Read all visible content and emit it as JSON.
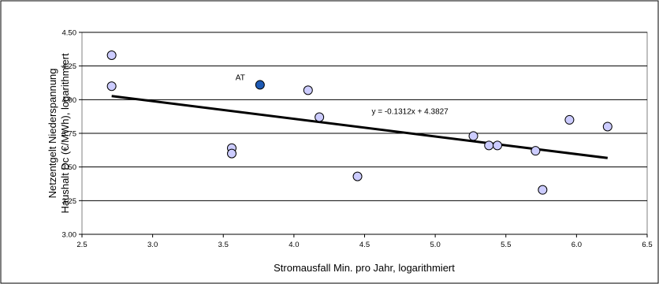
{
  "chart_data": {
    "type": "scatter",
    "title": "",
    "xlabel": "Stromausfall Min. pro Jahr, logarithmiert",
    "ylabel_line1": "Netzentgelt Niederspannung",
    "ylabel_line2": "Haushalt Dc (€/MWh), logarithmiert",
    "xlim": [
      2.5,
      6.5
    ],
    "ylim": [
      3.0,
      4.5
    ],
    "x_ticks": [
      "2.5",
      "3.0",
      "3.5",
      "4.0",
      "4.5",
      "5.0",
      "5.5",
      "6.0",
      "6.5"
    ],
    "y_ticks": [
      "3.00",
      "3.25",
      "3.50",
      "3.75",
      "4.00",
      "4.25",
      "4.50"
    ],
    "grid": {
      "horizontal": true,
      "vertical": false
    },
    "points": [
      {
        "x": 2.71,
        "y": 4.33
      },
      {
        "x": 2.71,
        "y": 4.1
      },
      {
        "x": 3.56,
        "y": 3.64
      },
      {
        "x": 3.56,
        "y": 3.6
      },
      {
        "x": 4.1,
        "y": 4.07
      },
      {
        "x": 4.18,
        "y": 3.87
      },
      {
        "x": 4.45,
        "y": 3.43
      },
      {
        "x": 5.27,
        "y": 3.73
      },
      {
        "x": 5.38,
        "y": 3.66
      },
      {
        "x": 5.44,
        "y": 3.66
      },
      {
        "x": 5.71,
        "y": 3.62
      },
      {
        "x": 5.76,
        "y": 3.33
      },
      {
        "x": 5.95,
        "y": 3.85
      },
      {
        "x": 6.22,
        "y": 3.8
      }
    ],
    "highlight": {
      "label": "AT",
      "x": 3.76,
      "y": 4.11
    },
    "trendline": {
      "equation": "y = -0.1312x + 4.3827",
      "slope": -0.1312,
      "intercept": 4.3827,
      "x_range": [
        2.71,
        6.22
      ]
    },
    "colors": {
      "point_fill": "#ccccff",
      "highlight_fill": "#1e5ab4",
      "trendline": "#000000",
      "grid": "#000000"
    }
  }
}
